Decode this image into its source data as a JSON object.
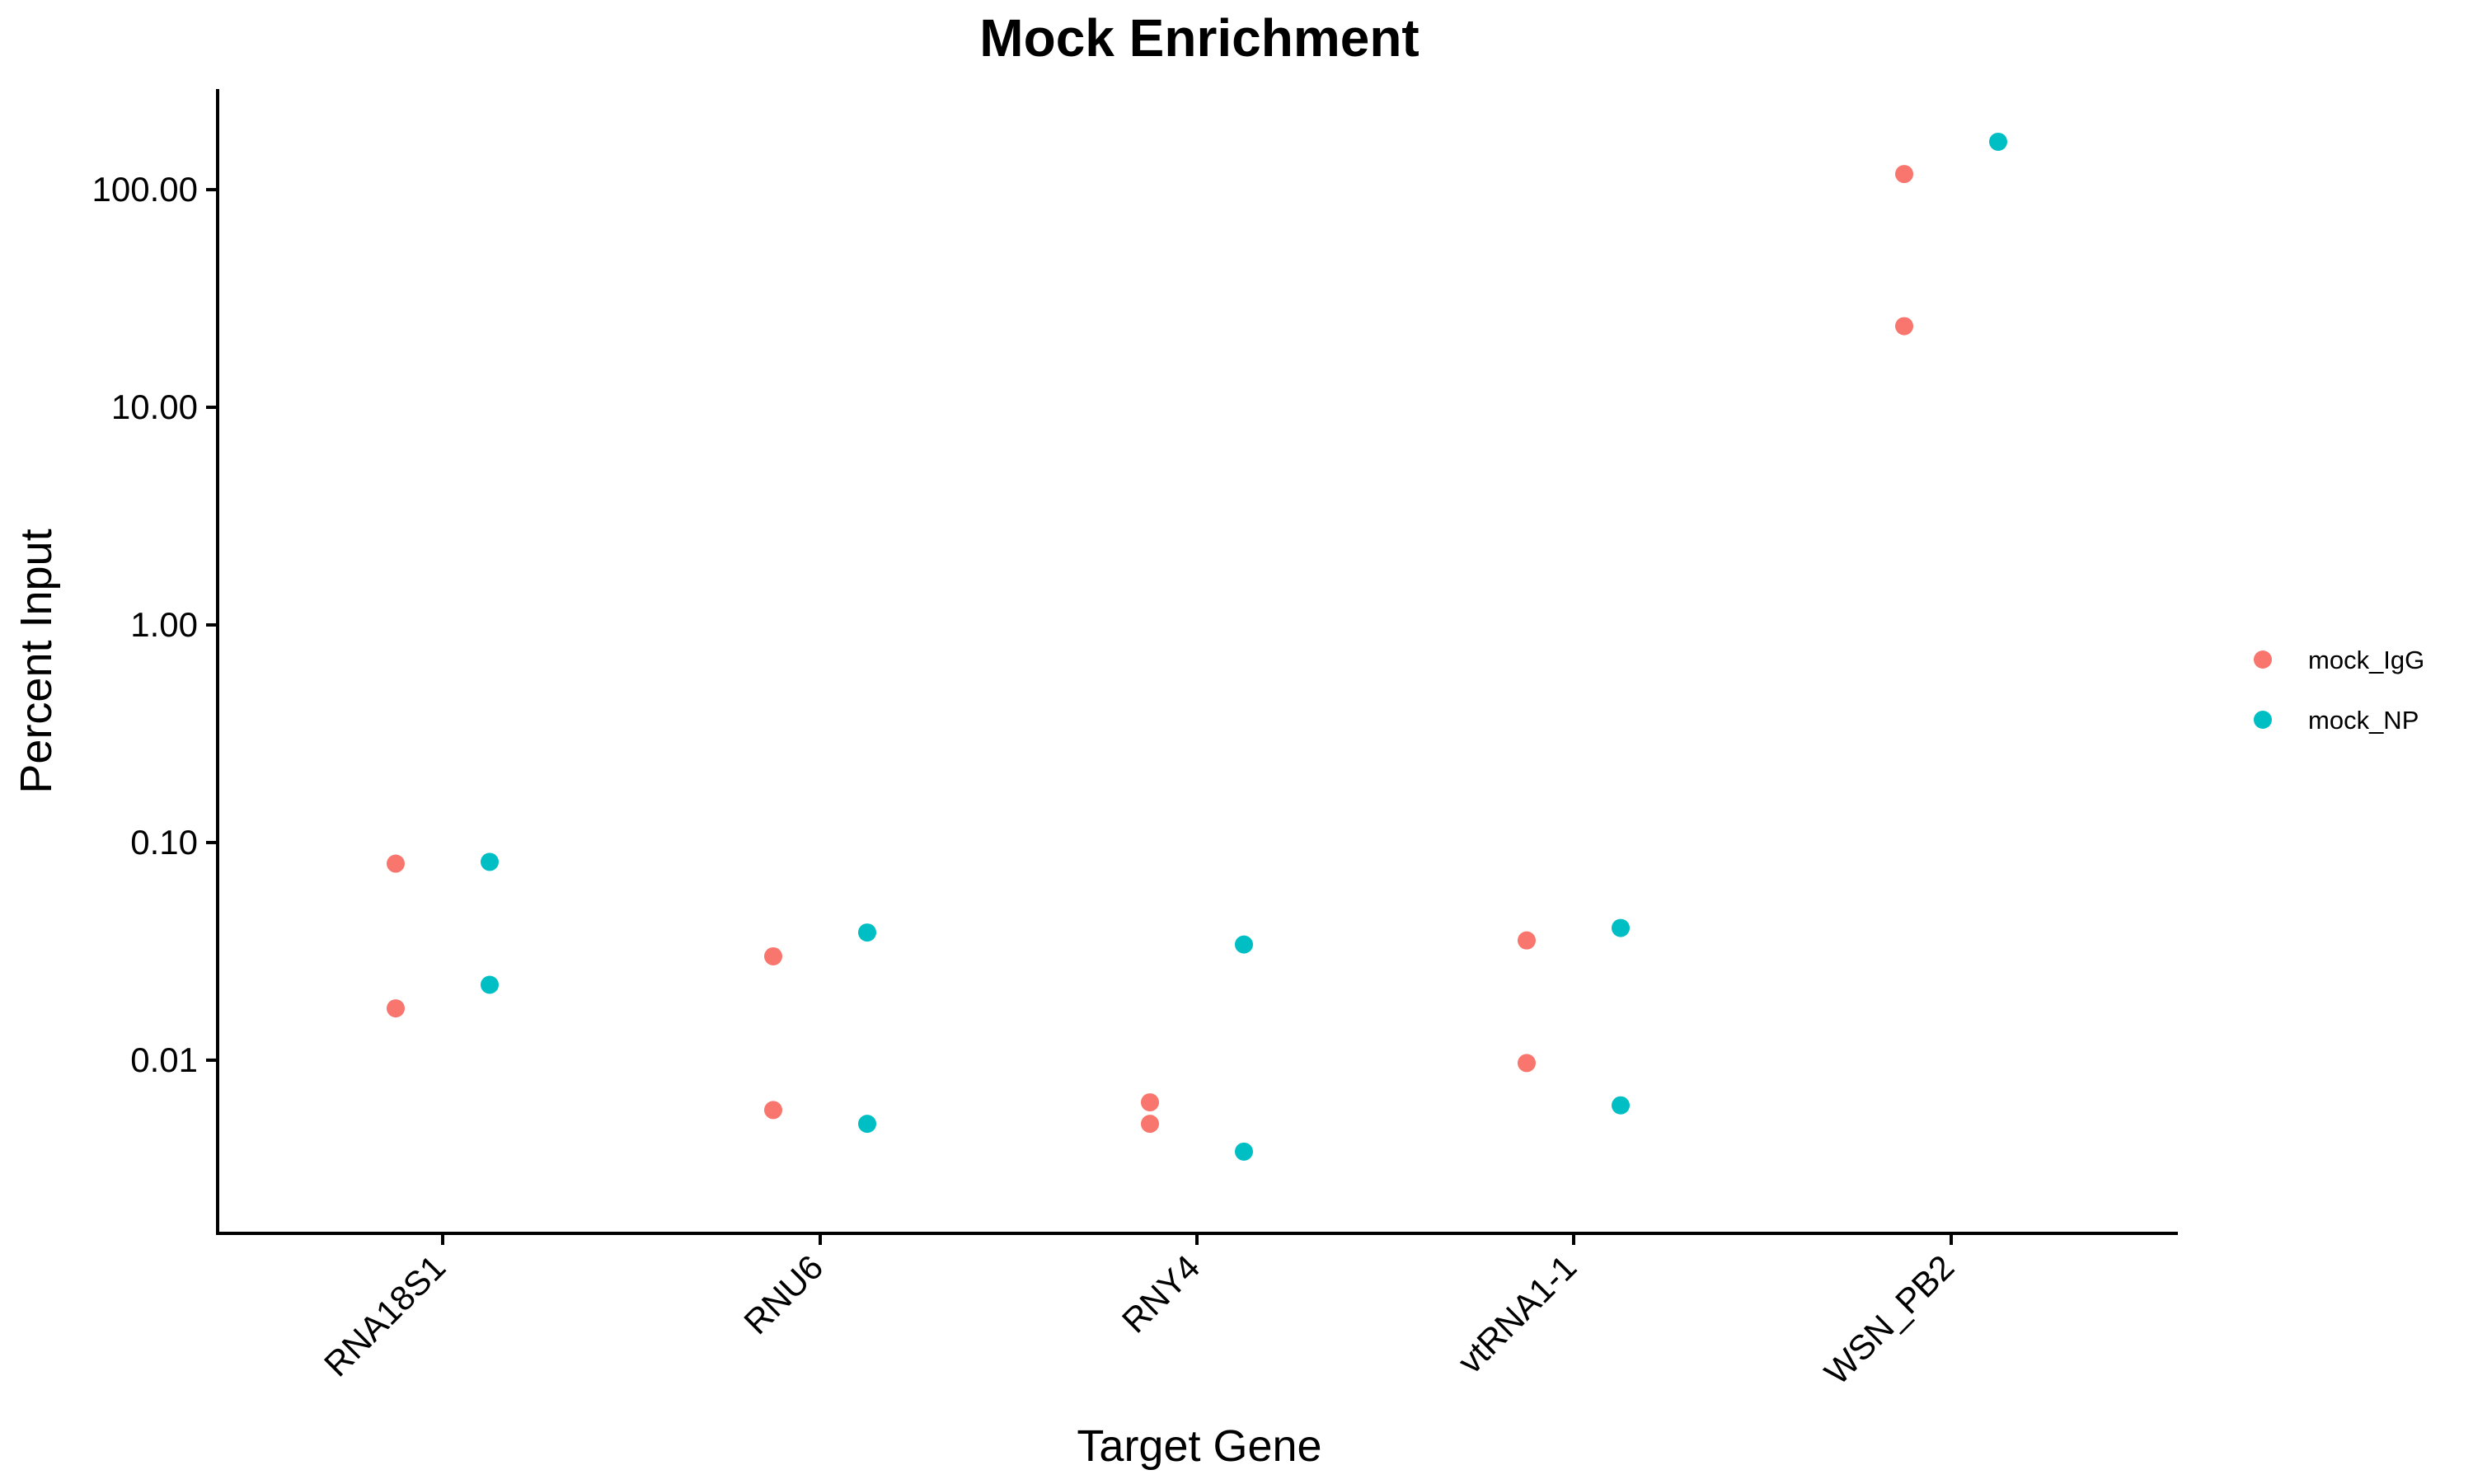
{
  "chart_data": {
    "type": "scatter",
    "title": "Mock Enrichment",
    "xlabel": "Target Gene",
    "ylabel": "Percent Input",
    "yscale": "log10",
    "ylim": [
      0.0016,
      290
    ],
    "yticks": [
      0.01,
      0.1,
      1,
      10,
      100
    ],
    "ytick_labels": [
      "0.01",
      "0.10",
      "1.00",
      "10.00",
      "100.00"
    ],
    "categories": [
      "RNA18S1",
      "RNU6",
      "RNY4",
      "vtRNA1-1",
      "WSN_PB2"
    ],
    "grid": false,
    "legend_position": "right",
    "series": [
      {
        "name": "mock_IgG",
        "color": "#F8766D",
        "points": [
          {
            "category": "RNA18S1",
            "y": 0.08
          },
          {
            "category": "RNA18S1",
            "y": 0.0173
          },
          {
            "category": "RNU6",
            "y": 0.03
          },
          {
            "category": "RNU6",
            "y": 0.0059
          },
          {
            "category": "RNY4",
            "y": 0.0064
          },
          {
            "category": "RNY4",
            "y": 0.0051
          },
          {
            "category": "vtRNA1-1",
            "y": 0.0355
          },
          {
            "category": "vtRNA1-1",
            "y": 0.0097
          },
          {
            "category": "WSN_PB2",
            "y": 118
          },
          {
            "category": "WSN_PB2",
            "y": 23.6
          }
        ]
      },
      {
        "name": "mock_NP",
        "color": "#00BFC4",
        "points": [
          {
            "category": "RNA18S1",
            "y": 0.0815
          },
          {
            "category": "RNA18S1",
            "y": 0.0222
          },
          {
            "category": "RNU6",
            "y": 0.0386
          },
          {
            "category": "RNU6",
            "y": 0.0051
          },
          {
            "category": "RNY4",
            "y": 0.034
          },
          {
            "category": "RNY4",
            "y": 0.0038
          },
          {
            "category": "vtRNA1-1",
            "y": 0.0405
          },
          {
            "category": "vtRNA1-1",
            "y": 0.0062
          },
          {
            "category": "WSN_PB2",
            "y": 166
          }
        ]
      }
    ]
  }
}
